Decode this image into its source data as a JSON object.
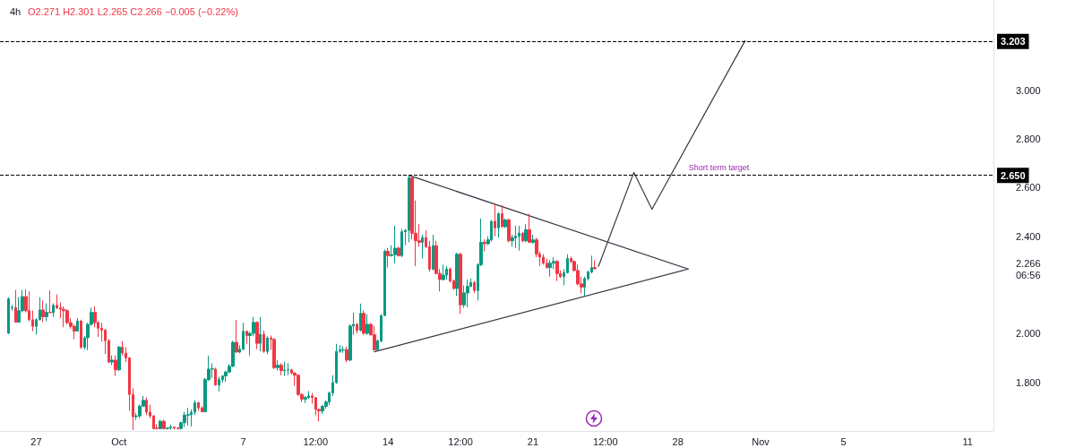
{
  "chart_data": {
    "type": "candlestick",
    "title": "4h",
    "subtitle": "O2.271 H2.301 L2.265 C2.266 −0.005 (−0.22%)",
    "x": [
      "--09-25T16:00",
      "--09-25T20:00",
      "--09-26T00:00",
      "--09-26T04:00",
      "--09-26T08:00",
      "--09-26T12:00",
      "--09-26T16:00",
      "--09-26T20:00",
      "--09-27T00:00",
      "--09-27T04:00",
      "--09-27T08:00",
      "--09-27T12:00",
      "--09-27T16:00",
      "--09-27T20:00",
      "--09-28T00:00",
      "--09-28T04:00",
      "--09-28T08:00",
      "--09-28T12:00",
      "--09-28T16:00",
      "--09-28T20:00",
      "--09-29T00:00",
      "--09-29T04:00",
      "--09-29T08:00",
      "--09-29T12:00",
      "--09-29T16:00",
      "--09-29T20:00",
      "--09-30T00:00",
      "--09-30T04:00",
      "--09-30T08:00",
      "--09-30T12:00",
      "--09-30T16:00",
      "--09-30T20:00",
      "--10-01T00:00",
      "--10-01T04:00",
      "--10-01T08:00",
      "--10-01T12:00",
      "--10-01T16:00",
      "--10-01T20:00",
      "--10-02T00:00",
      "--10-02T04:00",
      "--10-02T08:00",
      "--10-02T12:00",
      "--10-02T16:00",
      "--10-02T20:00",
      "--10-03T00:00",
      "--10-03T04:00",
      "--10-03T08:00",
      "--10-03T12:00",
      "--10-03T16:00",
      "--10-03T20:00",
      "--10-04T00:00",
      "--10-04T04:00",
      "--10-04T08:00",
      "--10-04T12:00",
      "--10-04T16:00",
      "--10-04T20:00",
      "--10-05T00:00",
      "--10-05T04:00",
      "--10-05T08:00",
      "--10-05T12:00",
      "--10-05T16:00",
      "--10-05T20:00",
      "--10-06T00:00",
      "--10-06T04:00",
      "--10-06T08:00",
      "--10-06T12:00",
      "--10-06T16:00",
      "--10-06T20:00",
      "--10-07T00:00",
      "--10-07T04:00",
      "--10-07T08:00",
      "--10-07T12:00",
      "--10-07T16:00",
      "--10-07T20:00",
      "--10-08T00:00",
      "--10-08T04:00",
      "--10-08T08:00",
      "--10-08T12:00",
      "--10-08T16:00",
      "--10-08T20:00",
      "--10-09T00:00",
      "--10-09T04:00",
      "--10-09T08:00",
      "--10-09T12:00",
      "--10-09T16:00",
      "--10-09T20:00",
      "--10-10T00:00",
      "--10-10T04:00",
      "--10-10T08:00",
      "--10-10T12:00",
      "--10-10T16:00",
      "--10-10T20:00",
      "--10-11T00:00",
      "--10-11T04:00",
      "--10-11T08:00",
      "--10-11T12:00",
      "--10-11T16:00",
      "--10-11T20:00",
      "--10-12T00:00",
      "--10-12T04:00",
      "--10-12T08:00",
      "--10-12T12:00",
      "--10-12T16:00",
      "--10-12T20:00",
      "--10-13T00:00",
      "--10-13T04:00",
      "--10-13T08:00",
      "--10-13T12:00",
      "--10-13T16:00",
      "--10-13T20:00",
      "--10-14T00:00",
      "--10-14T04:00",
      "--10-14T08:00",
      "--10-14T12:00",
      "--10-14T16:00",
      "--10-14T20:00",
      "--10-15T00:00",
      "--10-15T04:00",
      "--10-15T08:00",
      "--10-15T12:00",
      "--10-15T16:00",
      "--10-15T20:00",
      "--10-16T00:00",
      "--10-16T04:00",
      "--10-16T08:00",
      "--10-16T12:00",
      "--10-16T16:00",
      "--10-16T20:00",
      "--10-17T00:00",
      "--10-17T04:00",
      "--10-17T08:00",
      "--10-17T12:00",
      "--10-17T16:00",
      "--10-17T20:00",
      "--10-18T00:00",
      "--10-18T04:00",
      "--10-18T08:00",
      "--10-18T12:00",
      "--10-18T16:00",
      "--10-18T20:00",
      "--10-19T00:00",
      "--10-19T04:00",
      "--10-19T08:00",
      "--10-19T12:00",
      "--10-19T16:00",
      "--10-19T20:00",
      "--10-20T00:00",
      "--10-20T04:00",
      "--10-20T08:00",
      "--10-20T12:00",
      "--10-20T16:00",
      "--10-20T20:00",
      "--10-21T00:00",
      "--10-21T04:00",
      "--10-21T08:00",
      "--10-21T12:00",
      "--10-21T16:00",
      "--10-21T20:00",
      "--10-22T00:00",
      "--10-22T04:00",
      "--10-22T08:00",
      "--10-22T12:00",
      "--10-22T16:00",
      "--10-22T20:00",
      "--10-23T00:00",
      "--10-23T04:00",
      "--10-23T08:00",
      "--10-23T12:00",
      "--10-23T16:00",
      "--10-23T20:00",
      "--10-24T00:00"
    ],
    "ohlc": [
      [
        2.002,
        2.149,
        1.998,
        2.143
      ],
      [
        2.106,
        2.118,
        2.094,
        2.108
      ],
      [
        2.106,
        2.179,
        2.045,
        2.047
      ],
      [
        2.047,
        2.149,
        2.045,
        2.094
      ],
      [
        2.094,
        2.179,
        2.087,
        2.152
      ],
      [
        2.152,
        2.182,
        2.087,
        2.094
      ],
      [
        2.094,
        2.173,
        2.051,
        2.057
      ],
      [
        2.057,
        2.094,
        2.01,
        2.03
      ],
      [
        2.03,
        2.063,
        1.996,
        2.057
      ],
      [
        2.057,
        2.149,
        2.054,
        2.097
      ],
      [
        2.097,
        2.136,
        2.047,
        2.069
      ],
      [
        2.069,
        2.124,
        2.051,
        2.087
      ],
      [
        2.087,
        2.177,
        2.084,
        2.086
      ],
      [
        2.086,
        2.124,
        2.069,
        2.116
      ],
      [
        2.116,
        2.161,
        2.1,
        2.106
      ],
      [
        2.106,
        2.128,
        2.063,
        2.1
      ],
      [
        2.1,
        2.112,
        2.026,
        2.094
      ],
      [
        2.094,
        2.1,
        2.038,
        2.045
      ],
      [
        2.045,
        2.063,
        2.02,
        2.03
      ],
      [
        2.03,
        2.038,
        1.977,
        2.01
      ],
      [
        2.01,
        2.063,
        2.008,
        2.051
      ],
      [
        2.051,
        2.057,
        1.937,
        1.944
      ],
      [
        1.944,
        1.989,
        1.934,
        1.983
      ],
      [
        1.983,
        2.045,
        1.932,
        2.038
      ],
      [
        2.038,
        2.106,
        2.032,
        2.087
      ],
      [
        2.087,
        2.112,
        2.026,
        2.045
      ],
      [
        2.045,
        2.051,
        1.986,
        2.022
      ],
      [
        2.022,
        2.045,
        1.967,
        2.014
      ],
      [
        2.014,
        2.02,
        1.916,
        1.971
      ],
      [
        1.971,
        1.977,
        1.879,
        1.883
      ],
      [
        1.883,
        1.91,
        1.871,
        1.891
      ],
      [
        1.891,
        1.91,
        1.826,
        1.851
      ],
      [
        1.851,
        1.949,
        1.846,
        1.944
      ],
      [
        1.944,
        1.969,
        1.91,
        1.92
      ],
      [
        1.92,
        1.944,
        1.883,
        1.9
      ],
      [
        1.9,
        1.904,
        1.683,
        1.75
      ],
      [
        1.75,
        1.775,
        1.604,
        1.659
      ],
      [
        1.659,
        1.675,
        1.646,
        1.662
      ],
      [
        1.662,
        1.708,
        1.653,
        1.702
      ],
      [
        1.702,
        1.744,
        1.699,
        1.726
      ],
      [
        1.726,
        1.738,
        1.665,
        1.677
      ],
      [
        1.677,
        1.708,
        1.653,
        1.662
      ],
      [
        1.662,
        1.665,
        1.606,
        1.61
      ],
      [
        1.612,
        1.628,
        1.606,
        1.61
      ],
      [
        1.61,
        1.646,
        1.606,
        1.64
      ],
      [
        1.64,
        1.646,
        1.606,
        1.61
      ],
      [
        1.61,
        1.613,
        1.606,
        1.612
      ],
      [
        1.612,
        1.626,
        1.606,
        1.616
      ],
      [
        1.616,
        1.618,
        1.606,
        1.612
      ],
      [
        1.612,
        1.616,
        1.606,
        1.61
      ],
      [
        1.61,
        1.638,
        1.606,
        1.634
      ],
      [
        1.634,
        1.679,
        1.616,
        1.665
      ],
      [
        1.665,
        1.695,
        1.622,
        1.667
      ],
      [
        1.667,
        1.689,
        1.618,
        1.677
      ],
      [
        1.677,
        1.726,
        1.665,
        1.716
      ],
      [
        1.716,
        1.72,
        1.683,
        1.695
      ],
      [
        1.695,
        1.702,
        1.677,
        1.679
      ],
      [
        1.679,
        1.818,
        1.677,
        1.812
      ],
      [
        1.811,
        1.909,
        1.805,
        1.854
      ],
      [
        1.854,
        1.878,
        1.817,
        1.856
      ],
      [
        1.854,
        1.86,
        1.786,
        1.789
      ],
      [
        1.789,
        1.823,
        1.762,
        1.811
      ],
      [
        1.811,
        1.829,
        1.799,
        1.826
      ],
      [
        1.826,
        1.848,
        1.801,
        1.842
      ],
      [
        1.842,
        1.875,
        1.838,
        1.866
      ],
      [
        1.866,
        1.97,
        1.862,
        1.964
      ],
      [
        1.964,
        2.056,
        1.921,
        1.924
      ],
      [
        1.924,
        1.952,
        1.919,
        1.936
      ],
      [
        1.936,
        2.044,
        1.931,
        2.009
      ],
      [
        2.009,
        2.013,
        1.958,
        1.992
      ],
      [
        1.992,
        2.007,
        1.909,
        2.001
      ],
      [
        2.001,
        2.068,
        1.989,
        2.046
      ],
      [
        2.046,
        2.05,
        1.936,
        1.96
      ],
      [
        1.96,
        2.068,
        1.927,
        1.997
      ],
      [
        1.997,
        2.013,
        1.921,
        1.927
      ],
      [
        1.927,
        1.989,
        1.915,
        1.982
      ],
      [
        1.982,
        1.992,
        1.933,
        1.976
      ],
      [
        1.976,
        1.982,
        1.854,
        1.86
      ],
      [
        1.86,
        1.891,
        1.848,
        1.87
      ],
      [
        1.87,
        1.878,
        1.829,
        1.848
      ],
      [
        1.848,
        1.884,
        1.826,
        1.85
      ],
      [
        1.85,
        1.878,
        1.829,
        1.851
      ],
      [
        1.851,
        1.855,
        1.833,
        1.838
      ],
      [
        1.838,
        1.842,
        1.786,
        1.829
      ],
      [
        1.829,
        1.833,
        1.744,
        1.75
      ],
      [
        1.75,
        1.755,
        1.719,
        1.731
      ],
      [
        1.731,
        1.744,
        1.715,
        1.737
      ],
      [
        1.737,
        1.764,
        1.731,
        1.744
      ],
      [
        1.744,
        1.756,
        1.713,
        1.737
      ],
      [
        1.737,
        1.74,
        1.664,
        1.688
      ],
      [
        1.688,
        1.692,
        1.639,
        1.682
      ],
      [
        1.682,
        1.707,
        1.67,
        1.701
      ],
      [
        1.701,
        1.725,
        1.691,
        1.719
      ],
      [
        1.719,
        1.762,
        1.707,
        1.756
      ],
      [
        1.756,
        1.829,
        1.744,
        1.799
      ],
      [
        1.799,
        1.958,
        1.793,
        1.927
      ],
      [
        1.927,
        1.952,
        1.921,
        1.933
      ],
      [
        1.933,
        1.948,
        1.921,
        1.934
      ],
      [
        1.934,
        1.946,
        1.882,
        1.891
      ],
      [
        1.891,
        2.038,
        1.887,
        2.031
      ],
      [
        2.031,
        2.087,
        1.995,
        2.038
      ],
      [
        2.038,
        2.044,
        2.001,
        2.013
      ],
      [
        2.013,
        2.123,
        2.009,
        2.083
      ],
      [
        2.083,
        2.095,
        1.995,
        2.001
      ],
      [
        2.001,
        2.08,
        1.995,
        2.038
      ],
      [
        2.038,
        2.044,
        1.992,
        1.995
      ],
      [
        1.995,
        2.031,
        1.931,
        1.933
      ],
      [
        1.933,
        1.976,
        1.927,
        1.97
      ],
      [
        1.97,
        2.08,
        1.964,
        2.074
      ],
      [
        2.074,
        2.345,
        2.071,
        2.338
      ],
      [
        2.338,
        2.351,
        2.271,
        2.32
      ],
      [
        2.32,
        2.363,
        2.316,
        2.324
      ],
      [
        2.324,
        2.443,
        2.289,
        2.351
      ],
      [
        2.351,
        2.357,
        2.316,
        2.32
      ],
      [
        2.32,
        2.43,
        2.314,
        2.418
      ],
      [
        2.418,
        2.43,
        2.363,
        2.424
      ],
      [
        2.424,
        2.65,
        2.375,
        2.64
      ],
      [
        2.64,
        2.65,
        2.387,
        2.412
      ],
      [
        2.412,
        2.547,
        2.277,
        2.381
      ],
      [
        2.381,
        2.449,
        2.357,
        2.375
      ],
      [
        2.375,
        2.406,
        2.308,
        2.394
      ],
      [
        2.394,
        2.424,
        2.351,
        2.357
      ],
      [
        2.357,
        2.381,
        2.255,
        2.265
      ],
      [
        2.265,
        2.406,
        2.259,
        2.361
      ],
      [
        2.361,
        2.381,
        2.243,
        2.247
      ],
      [
        2.247,
        2.265,
        2.173,
        2.222
      ],
      [
        2.222,
        2.283,
        2.218,
        2.24
      ],
      [
        2.24,
        2.277,
        2.222,
        2.265
      ],
      [
        2.265,
        2.271,
        2.21,
        2.216
      ],
      [
        2.216,
        2.222,
        2.179,
        2.185
      ],
      [
        2.185,
        2.332,
        2.155,
        2.326
      ],
      [
        2.326,
        2.332,
        2.081,
        2.118
      ],
      [
        2.118,
        2.198,
        2.106,
        2.167
      ],
      [
        2.167,
        2.222,
        2.108,
        2.194
      ],
      [
        2.194,
        2.226,
        2.191,
        2.21
      ],
      [
        2.21,
        2.216,
        2.167,
        2.177
      ],
      [
        2.177,
        2.289,
        2.136,
        2.283
      ],
      [
        2.283,
        2.473,
        2.277,
        2.375
      ],
      [
        2.375,
        2.387,
        2.338,
        2.369
      ],
      [
        2.369,
        2.4,
        2.363,
        2.385
      ],
      [
        2.385,
        2.467,
        2.378,
        2.461
      ],
      [
        2.461,
        2.534,
        2.4,
        2.434
      ],
      [
        2.434,
        2.498,
        2.394,
        2.492
      ],
      [
        2.492,
        2.528,
        2.436,
        2.439
      ],
      [
        2.439,
        2.473,
        2.434,
        2.467
      ],
      [
        2.467,
        2.473,
        2.375,
        2.381
      ],
      [
        2.381,
        2.406,
        2.357,
        2.394
      ],
      [
        2.394,
        2.443,
        2.351,
        2.4
      ],
      [
        2.4,
        2.443,
        2.341,
        2.412
      ],
      [
        2.412,
        2.418,
        2.375,
        2.381
      ],
      [
        2.381,
        2.449,
        2.375,
        2.427
      ],
      [
        2.427,
        2.492,
        2.373,
        2.375
      ],
      [
        2.375,
        2.406,
        2.369,
        2.385
      ],
      [
        2.385,
        2.394,
        2.314,
        2.326
      ],
      [
        2.326,
        2.338,
        2.277,
        2.314
      ],
      [
        2.314,
        2.326,
        2.283,
        2.289
      ],
      [
        2.289,
        2.308,
        2.267,
        2.271
      ],
      [
        2.271,
        2.302,
        2.234,
        2.289
      ],
      [
        2.289,
        2.314,
        2.265,
        2.296
      ],
      [
        2.296,
        2.302,
        2.216,
        2.247
      ],
      [
        2.247,
        2.259,
        2.228,
        2.234
      ],
      [
        2.234,
        2.265,
        2.198,
        2.25
      ],
      [
        2.25,
        2.326,
        2.247,
        2.308
      ],
      [
        2.308,
        2.316,
        2.289,
        2.296
      ],
      [
        2.296,
        2.302,
        2.255,
        2.259
      ],
      [
        2.259,
        2.283,
        2.198,
        2.204
      ],
      [
        2.204,
        2.234,
        2.165,
        2.191
      ],
      [
        2.191,
        2.234,
        2.152,
        2.226
      ],
      [
        2.226,
        2.259,
        2.218,
        2.253
      ],
      [
        2.253,
        2.32,
        2.247,
        2.271
      ],
      [
        2.271,
        2.301,
        2.265,
        2.266
      ]
    ],
    "series": [
      {
        "type": "line",
        "color": "#363a45",
        "x": [
          "--10-15T00:00",
          "--10-28T12:00"
        ],
        "values": [
          2.65,
          2.265
        ]
      },
      {
        "type": "line",
        "color": "#363a45",
        "x": [
          "--10-13T08:00",
          "--10-28T12:00"
        ],
        "values": [
          1.925,
          2.265
        ]
      },
      {
        "type": "line",
        "color": "#363a45",
        "x": [
          "--10-24T04:00",
          "--10-25T21:00",
          "--10-26T18:00",
          "--10-31T06:00"
        ],
        "values": [
          2.276,
          2.662,
          2.511,
          3.203
        ]
      }
    ],
    "ref_lines": [
      {
        "axis": "y",
        "value": 3.203,
        "label": "3.203",
        "color": "#000000",
        "line_style": "dashed"
      },
      {
        "axis": "y",
        "value": 2.65,
        "label": "2.650",
        "color": "#000000",
        "line_style": "dashed"
      }
    ],
    "annotations": [
      {
        "text": "Short term target",
        "x": "--10-28T00:00",
        "y": 2.65
      }
    ],
    "xlim": [
      "--09-25T06:00",
      "--11-12T06:00"
    ],
    "xticks": [
      {
        "value": "--09-27",
        "label": "27"
      },
      {
        "value": "--10-01",
        "label": "Oct"
      },
      {
        "value": "--10-07",
        "label": "7"
      },
      {
        "value": "--10-10T12:00",
        "label": "12:00"
      },
      {
        "value": "--10-14",
        "label": "14"
      },
      {
        "value": "--10-17T12:00",
        "label": "12:00"
      },
      {
        "value": "--10-21",
        "label": "21"
      },
      {
        "value": "--10-24T12:00",
        "label": "12:00"
      },
      {
        "value": "--10-28",
        "label": "28"
      },
      {
        "value": "--11-01",
        "label": "Nov"
      },
      {
        "value": "--11-05",
        "label": "5"
      },
      {
        "value": "--11-11",
        "label": "11"
      }
    ],
    "ylim": [
      1.6,
      3.37
    ],
    "yticks": [
      {
        "value": 1.8,
        "label": "1.800"
      },
      {
        "value": 2.0,
        "label": "2.000"
      },
      {
        "value": 2.266,
        "label": "2.266\n06:56"
      },
      {
        "value": 2.4,
        "label": "2.400"
      },
      {
        "value": 2.6,
        "label": "2.600"
      },
      {
        "value": 2.8,
        "label": "2.800"
      },
      {
        "value": 3.0,
        "label": "3.000"
      }
    ],
    "grid": false
  }
}
